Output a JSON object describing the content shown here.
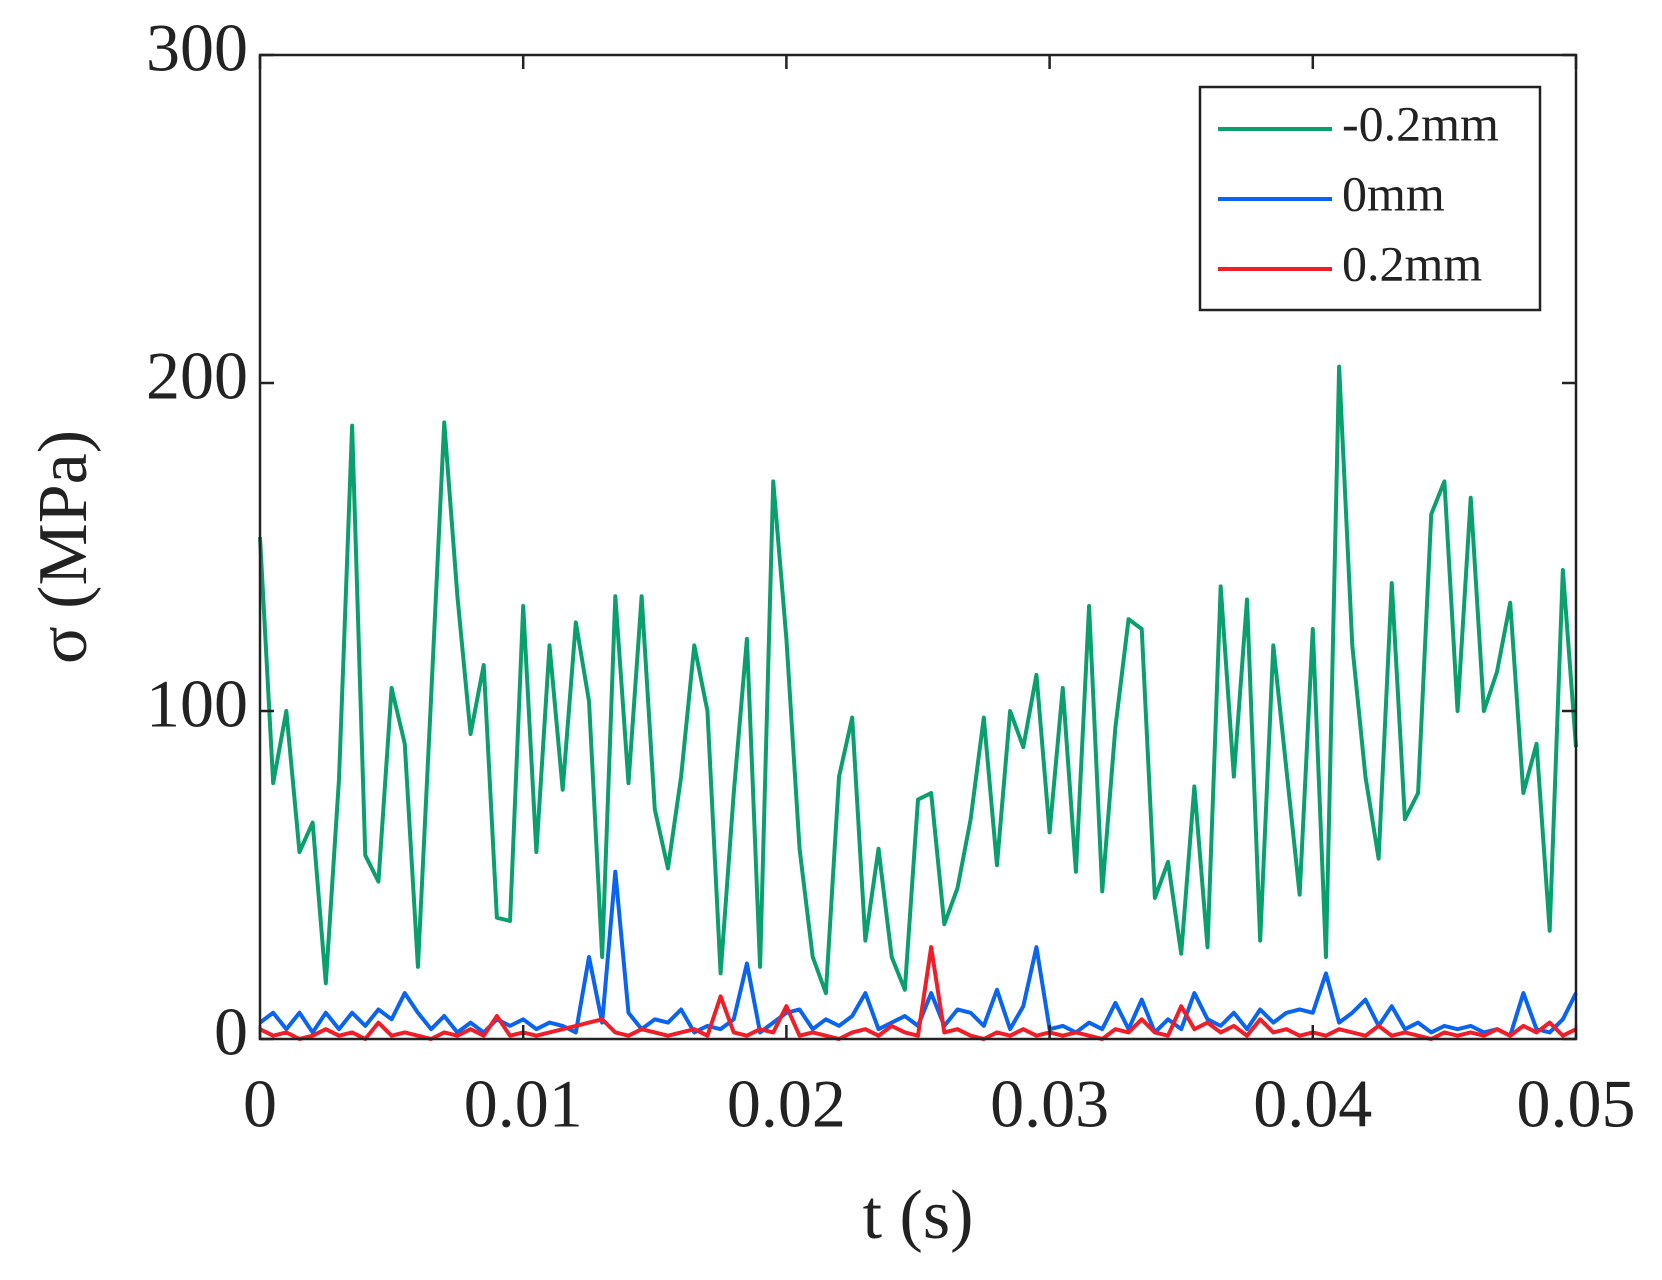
{
  "chart_data": {
    "type": "line",
    "xlabel": "t (s)",
    "ylabel": "σ (MPa)",
    "x": [
      0,
      0.0005,
      0.001,
      0.0015,
      0.002,
      0.0025,
      0.003,
      0.0035,
      0.004,
      0.0045,
      0.005,
      0.0055,
      0.006,
      0.0065,
      0.007,
      0.0075,
      0.008,
      0.0085,
      0.009,
      0.0095,
      0.01,
      0.0105,
      0.011,
      0.0115,
      0.012,
      0.0125,
      0.013,
      0.0135,
      0.014,
      0.0145,
      0.015,
      0.0155,
      0.016,
      0.0165,
      0.017,
      0.0175,
      0.018,
      0.0185,
      0.019,
      0.0195,
      0.02,
      0.0205,
      0.021,
      0.0215,
      0.022,
      0.0225,
      0.023,
      0.0235,
      0.024,
      0.0245,
      0.025,
      0.0255,
      0.026,
      0.0265,
      0.027,
      0.0275,
      0.028,
      0.0285,
      0.029,
      0.0295,
      0.03,
      0.0305,
      0.031,
      0.0315,
      0.032,
      0.0325,
      0.033,
      0.0335,
      0.034,
      0.0345,
      0.035,
      0.0355,
      0.036,
      0.0365,
      0.037,
      0.0375,
      0.038,
      0.0385,
      0.039,
      0.0395,
      0.04,
      0.0405,
      0.041,
      0.0415,
      0.042,
      0.0425,
      0.043,
      0.0435,
      0.044,
      0.0445,
      0.045,
      0.0455,
      0.046,
      0.0465,
      0.047,
      0.0475,
      0.048,
      0.0485,
      0.049,
      0.0495,
      0.05
    ],
    "series": [
      {
        "name": "-0.2mm",
        "color": "#0aa06e",
        "values": [
          153,
          78,
          100,
          57,
          66,
          17,
          79,
          187,
          56,
          48,
          107,
          90,
          22,
          104,
          188,
          135,
          93,
          114,
          37,
          36,
          132,
          57,
          120,
          76,
          127,
          103,
          25,
          135,
          78,
          135,
          70,
          52,
          80,
          120,
          100,
          20,
          75,
          122,
          22,
          170,
          122,
          58,
          25,
          14,
          80,
          98,
          30,
          58,
          25,
          15,
          73,
          75,
          35,
          46,
          67,
          98,
          53,
          100,
          89,
          111,
          63,
          107,
          51,
          132,
          45,
          95,
          128,
          125,
          43,
          54,
          26,
          77,
          28,
          138,
          80,
          134,
          30,
          120,
          82,
          44,
          125,
          25,
          205,
          120,
          80,
          55,
          139,
          67,
          75,
          160,
          170,
          100,
          165,
          100,
          112,
          133,
          75,
          90,
          33,
          143,
          89
        ]
      },
      {
        "name": "0mm",
        "color": "#0a64f0",
        "values": [
          5,
          8,
          3,
          8,
          2,
          8,
          3,
          8,
          4,
          9,
          6,
          14,
          8,
          3,
          7,
          2,
          5,
          2,
          6,
          4,
          6,
          3,
          5,
          4,
          2,
          25,
          5,
          51,
          8,
          3,
          6,
          5,
          9,
          2,
          4,
          3,
          6,
          23,
          2,
          5,
          8,
          9,
          3,
          6,
          4,
          7,
          14,
          3,
          5,
          7,
          4,
          14,
          4,
          9,
          8,
          4,
          15,
          3,
          10,
          28,
          3,
          4,
          2,
          5,
          3,
          11,
          3,
          12,
          2,
          6,
          3,
          14,
          6,
          4,
          8,
          3,
          9,
          5,
          8,
          9,
          8,
          20,
          5,
          8,
          12,
          4,
          10,
          3,
          5,
          2,
          4,
          3,
          4,
          2,
          3,
          1,
          14,
          3,
          2,
          6,
          14
        ]
      },
      {
        "name": "0.2mm",
        "color": "#f01e28",
        "values": [
          3,
          1,
          2,
          0,
          1,
          3,
          1,
          2,
          0,
          5,
          1,
          2,
          1,
          0,
          2,
          1,
          3,
          1,
          7,
          1,
          2,
          1,
          2,
          3,
          4,
          5,
          6,
          2,
          1,
          3,
          2,
          1,
          2,
          3,
          1,
          13,
          2,
          1,
          3,
          2,
          10,
          1,
          2,
          1,
          0,
          2,
          3,
          1,
          4,
          2,
          1,
          28,
          2,
          3,
          1,
          0,
          2,
          1,
          3,
          1,
          2,
          1,
          2,
          1,
          0,
          3,
          2,
          6,
          2,
          1,
          10,
          3,
          5,
          2,
          4,
          1,
          6,
          2,
          3,
          1,
          2,
          1,
          3,
          2,
          1,
          4,
          1,
          2,
          1,
          0,
          2,
          1,
          2,
          1,
          3,
          1,
          4,
          2,
          5,
          1,
          3
        ]
      }
    ],
    "xlim": [
      0,
      0.05
    ],
    "ylim": [
      0,
      300
    ],
    "xticks": [
      0,
      0.01,
      0.02,
      0.03,
      0.04,
      0.05
    ],
    "yticks": [
      0,
      100,
      200,
      300
    ],
    "legend": "upper right"
  }
}
